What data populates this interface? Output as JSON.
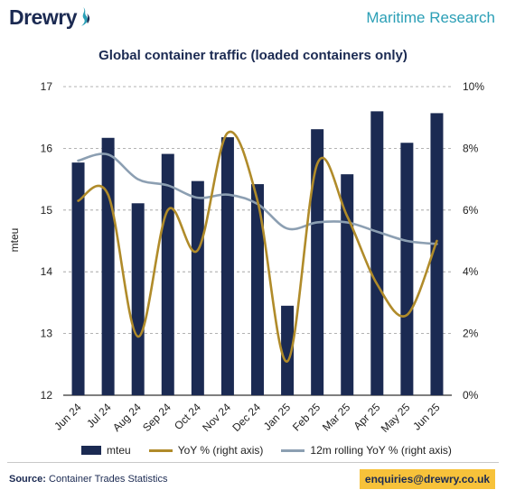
{
  "header": {
    "brand": "Drewry",
    "section": "Maritime Research"
  },
  "colors": {
    "bars": "#1b2a52",
    "yoy": "#b08b2a",
    "rolling": "#8c9fb2",
    "accent": "#2b9fb6",
    "enquiries_bg": "#f7c23a"
  },
  "chart_data": {
    "type": "bar",
    "title": "Global container traffic (loaded containers only)",
    "ylabel": "mteu",
    "ylim": [
      12,
      17
    ],
    "yticks": [
      "12",
      "13",
      "14",
      "15",
      "16",
      "17"
    ],
    "y2lim": [
      0,
      10
    ],
    "y2ticks": [
      "0%",
      "2%",
      "4%",
      "6%",
      "8%",
      "10%"
    ],
    "categories": [
      "Jun 24",
      "Jul 24",
      "Aug 24",
      "Sep 24",
      "Oct 24",
      "Nov 24",
      "Dec 24",
      "Jan 25",
      "Feb 25",
      "Mar 25",
      "Apr 25",
      "May 25",
      "Jun 25"
    ],
    "series": [
      {
        "name": "mteu",
        "axis": "left",
        "type": "bar",
        "values": [
          15.77,
          16.17,
          15.11,
          15.91,
          15.47,
          16.18,
          15.42,
          13.45,
          16.31,
          15.58,
          16.6,
          16.09,
          16.57
        ]
      },
      {
        "name": "YoY % (right axis)",
        "axis": "right",
        "type": "line",
        "values": [
          6.3,
          6.5,
          1.9,
          6.0,
          4.7,
          8.5,
          6.3,
          1.1,
          7.5,
          5.8,
          3.6,
          2.6,
          5.0
        ]
      },
      {
        "name": "12m rolling YoY % (right axis)",
        "axis": "right",
        "type": "line",
        "values": [
          7.6,
          7.8,
          7.0,
          6.8,
          6.4,
          6.5,
          6.2,
          5.4,
          5.6,
          5.6,
          5.3,
          5.0,
          4.9
        ]
      }
    ],
    "grid": true,
    "legend": "bottom"
  },
  "footer": {
    "source_label": "Source:",
    "source_text": "Container Trades Statistics",
    "enquiries": "enquiries@drewry.co.uk"
  }
}
